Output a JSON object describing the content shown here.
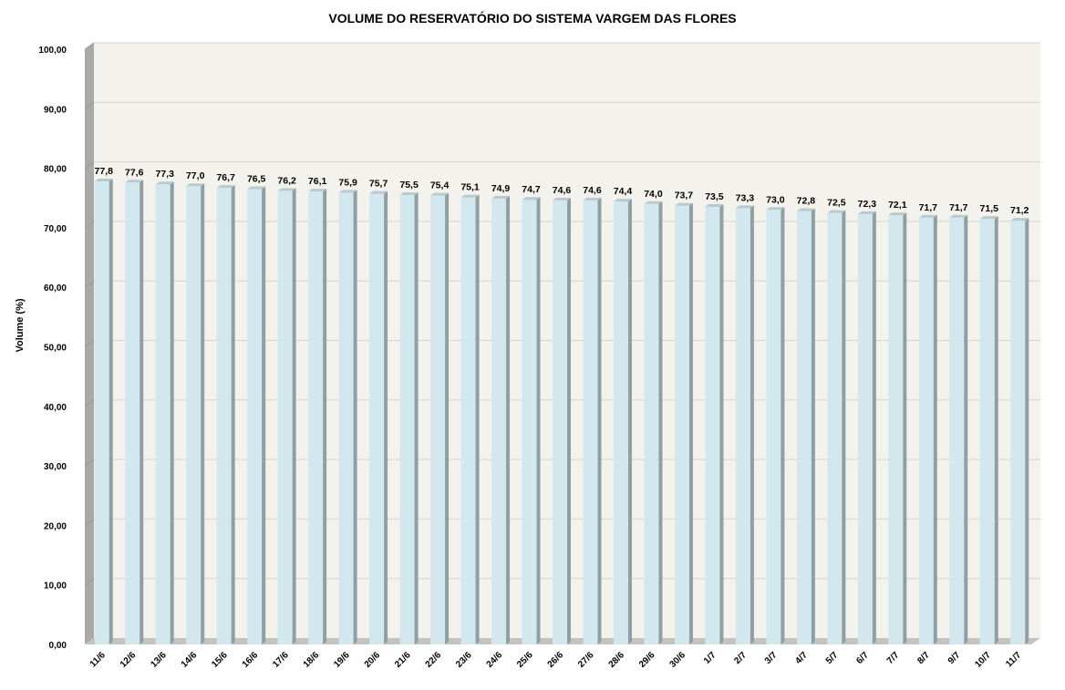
{
  "chart_data": {
    "type": "bar",
    "title": "VOLUME DO RESERVATÓRIO DO SISTEMA VARGEM DAS FLORES",
    "xlabel": "",
    "ylabel": "Volume (%)",
    "ylim": [
      0,
      100
    ],
    "ytick_step": 10,
    "ytick_labels": [
      "0,00",
      "10,00",
      "20,00",
      "30,00",
      "40,00",
      "50,00",
      "60,00",
      "70,00",
      "80,00",
      "90,00",
      "100,00"
    ],
    "categories": [
      "11/6",
      "12/6",
      "13/6",
      "14/6",
      "15/6",
      "16/6",
      "17/6",
      "18/6",
      "19/6",
      "20/6",
      "21/6",
      "22/6",
      "23/6",
      "24/6",
      "25/6",
      "26/6",
      "27/6",
      "28/6",
      "29/6",
      "30/6",
      "1/7",
      "2/7",
      "3/7",
      "4/7",
      "5/7",
      "6/7",
      "7/7",
      "8/7",
      "9/7",
      "10/7",
      "11/7"
    ],
    "values": [
      77.8,
      77.6,
      77.3,
      77.0,
      76.7,
      76.5,
      76.2,
      76.1,
      75.9,
      75.7,
      75.5,
      75.4,
      75.1,
      74.9,
      74.7,
      74.6,
      74.6,
      74.4,
      74.0,
      73.7,
      73.5,
      73.3,
      73.0,
      72.8,
      72.5,
      72.3,
      72.1,
      71.7,
      71.7,
      71.5,
      71.2
    ],
    "value_labels": [
      "77,8",
      "77,6",
      "77,3",
      "77,0",
      "76,7",
      "76,5",
      "76,2",
      "76,1",
      "75,9",
      "75,7",
      "75,5",
      "75,4",
      "75,1",
      "74,9",
      "74,7",
      "74,6",
      "74,6",
      "74,4",
      "74,0",
      "73,7",
      "73,5",
      "73,3",
      "73,0",
      "72,8",
      "72,5",
      "72,3",
      "72,1",
      "71,7",
      "71,7",
      "71,5",
      "71,2"
    ],
    "grid": true,
    "legend": "none",
    "style": "3d-column",
    "colors": {
      "bar_front": "#d3e8ee",
      "bar_side": "#8fa0a4",
      "bar_top": "#b8cacf",
      "plot_background": "#f4f2ec",
      "left_wall": "#a9aaa6",
      "floor": "#c3c4bf",
      "gridline": "#d4d4d0"
    }
  }
}
